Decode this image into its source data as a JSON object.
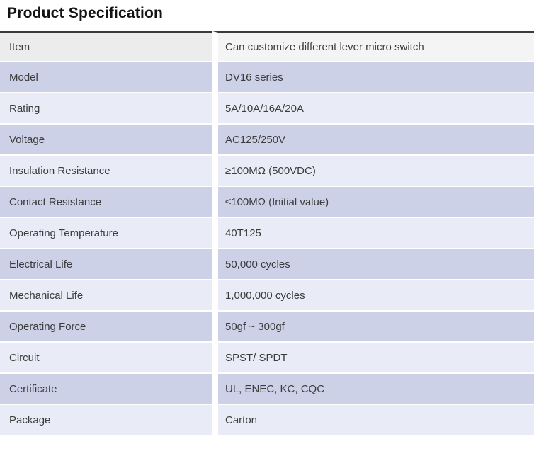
{
  "page_title": "Product Specification",
  "colors": {
    "top_border": "#3b3b3b",
    "header_label_bg": "#ececec",
    "header_value_bg": "#f4f4f4",
    "row_dark_bg": "#ccd1e8",
    "row_light_bg": "#e9ebf6",
    "row_gap": "#ffffff",
    "text": "#3c3c3c",
    "title_text": "#141414"
  },
  "table": {
    "rows": [
      {
        "label": "Item",
        "value": "Can customize different lever micro switch"
      },
      {
        "label": "Model",
        "value": "DV16 series"
      },
      {
        "label": "Rating",
        "value": "5A/10A/16A/20A"
      },
      {
        "label": "Voltage",
        "value": "AC125/250V"
      },
      {
        "label": "Insulation Resistance",
        "value": "≥100MΩ (500VDC)"
      },
      {
        "label": "Contact Resistance",
        "value": "≤100MΩ (Initial value)"
      },
      {
        "label": "Operating Temperature",
        "value": "40T125"
      },
      {
        "label": "Electrical Life",
        "value": "50,000 cycles"
      },
      {
        "label": "Mechanical Life",
        "value": "1,000,000 cycles"
      },
      {
        "label": "Operating Force",
        "value": "50gf ~ 300gf"
      },
      {
        "label": "Circuit",
        "value": "SPST/ SPDT"
      },
      {
        "label": "Certificate",
        "value": "UL, ENEC, KC, CQC"
      },
      {
        "label": "Package",
        "value": "Carton"
      }
    ]
  }
}
